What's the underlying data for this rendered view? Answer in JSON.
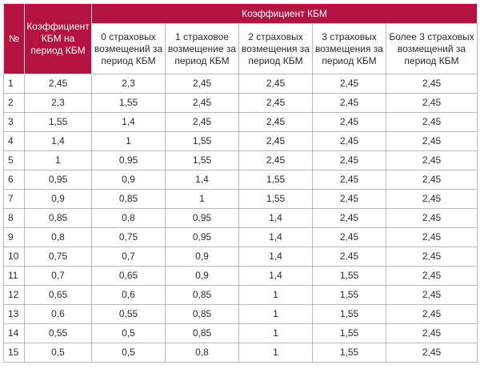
{
  "table": {
    "header": {
      "num": "№",
      "kbm_period": "Коэффициент КБМ на период КБМ",
      "group": "Коэффициент КБМ",
      "claims": [
        "0 страховых возмещений за период КБМ",
        "1 страховое возмещение за период КБМ",
        "2 страховых возмещения за период КБМ",
        "3 страховых возмещения за период КБМ",
        "Более 3 страховых возмещений за период КБМ"
      ]
    },
    "rows": [
      [
        "1",
        "2,45",
        "2,3",
        "2,45",
        "2,45",
        "2,45",
        "2,45"
      ],
      [
        "2",
        "2,3",
        "1,55",
        "2,45",
        "2,45",
        "2,45",
        "2,45"
      ],
      [
        "3",
        "1,55",
        "1,4",
        "2,45",
        "2,45",
        "2,45",
        "2,45"
      ],
      [
        "4",
        "1,4",
        "1",
        "1,55",
        "2,45",
        "2,45",
        "2,45"
      ],
      [
        "5",
        "1",
        "0,95",
        "1,55",
        "2,45",
        "2,45",
        "2,45"
      ],
      [
        "6",
        "0,95",
        "0,9",
        "1,4",
        "1,55",
        "2,45",
        "2,45"
      ],
      [
        "7",
        "0,9",
        "0,85",
        "1",
        "1,55",
        "2,45",
        "2,45"
      ],
      [
        "8",
        "0,85",
        "0,8",
        "0,95",
        "1,4",
        "2,45",
        "2,45"
      ],
      [
        "9",
        "0,8",
        "0,75",
        "0,95",
        "1,4",
        "2,45",
        "2,45"
      ],
      [
        "10",
        "0,75",
        "0,7",
        "0,9",
        "1,4",
        "2,45",
        "2,45"
      ],
      [
        "11",
        "0,7",
        "0,65",
        "0,9",
        "1,4",
        "1,55",
        "2,45"
      ],
      [
        "12",
        "0,65",
        "0,6",
        "0,85",
        "1",
        "1,55",
        "2,45"
      ],
      [
        "13",
        "0,6",
        "0,55",
        "0,85",
        "1",
        "1,55",
        "2,45"
      ],
      [
        "14",
        "0,55",
        "0,5",
        "0,85",
        "1",
        "1,55",
        "2,45"
      ],
      [
        "15",
        "0,5",
        "0,5",
        "0,8",
        "1",
        "1,55",
        "2,45"
      ]
    ]
  },
  "colors": {
    "header_bg": "#b3133e",
    "header_text": "#ffffff",
    "border": "#b9b9b9"
  }
}
